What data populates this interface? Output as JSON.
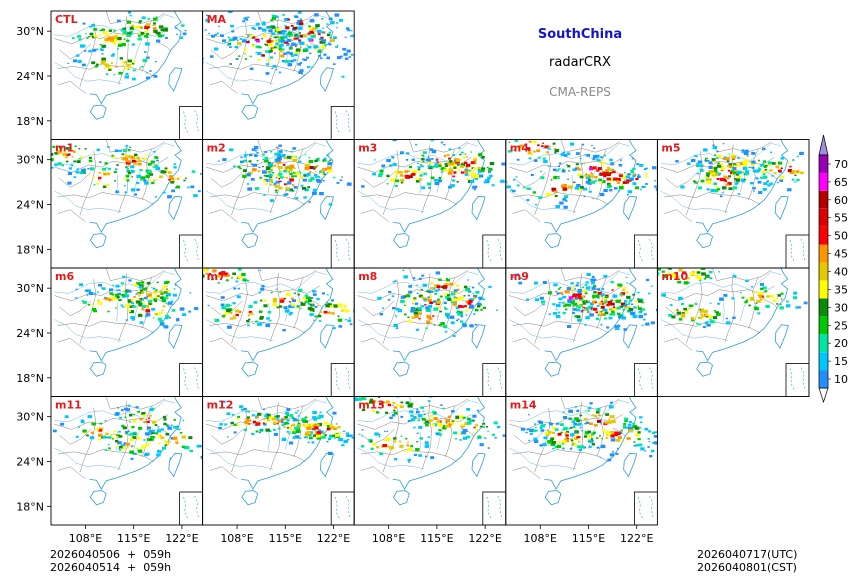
{
  "header": {
    "region": "SouthChina",
    "variable": "radarCRX",
    "model": "CMA-REPS"
  },
  "footer": {
    "init_time_utc": "2026040506  +  059h",
    "init_time_cst": "2026040514  +  059h",
    "valid_time_utc": "2026040717(UTC)",
    "valid_time_cst": "2026040801(CST)"
  },
  "chart_data": {
    "type": "heatmap",
    "title": "SouthChina radarCRX CMA-REPS",
    "lat_ticks": [
      "30°N",
      "24°N",
      "18°N"
    ],
    "lat_values": [
      30,
      24,
      18
    ],
    "lon_ticks": [
      "108°E",
      "115°E",
      "122°E"
    ],
    "lon_values": [
      108,
      115,
      122
    ],
    "lon_range": [
      103,
      125
    ],
    "lat_range": [
      15.5,
      32.7
    ],
    "members": [
      {
        "label": "CTL",
        "row": 0,
        "col": 0,
        "intensity": 0.35
      },
      {
        "label": "MA",
        "row": 0,
        "col": 1,
        "intensity": 1.0
      },
      {
        "label": "m1",
        "row": 1,
        "col": 0,
        "intensity": 0.45
      },
      {
        "label": "m2",
        "row": 1,
        "col": 1,
        "intensity": 0.6
      },
      {
        "label": "m3",
        "row": 1,
        "col": 2,
        "intensity": 0.5
      },
      {
        "label": "m4",
        "row": 1,
        "col": 3,
        "intensity": 0.75
      },
      {
        "label": "m5",
        "row": 1,
        "col": 4,
        "intensity": 0.6
      },
      {
        "label": "m6",
        "row": 2,
        "col": 0,
        "intensity": 0.4
      },
      {
        "label": "m7",
        "row": 2,
        "col": 1,
        "intensity": 0.5
      },
      {
        "label": "m8",
        "row": 2,
        "col": 2,
        "intensity": 0.55
      },
      {
        "label": "m9",
        "row": 2,
        "col": 3,
        "intensity": 0.75
      },
      {
        "label": "m10",
        "row": 2,
        "col": 4,
        "intensity": 0.35
      },
      {
        "label": "m11",
        "row": 3,
        "col": 0,
        "intensity": 0.4
      },
      {
        "label": "m12",
        "row": 3,
        "col": 1,
        "intensity": 0.55
      },
      {
        "label": "m13",
        "row": 3,
        "col": 2,
        "intensity": 0.5
      },
      {
        "label": "m14",
        "row": 3,
        "col": 3,
        "intensity": 0.6
      }
    ],
    "colorbar": {
      "levels": [
        10,
        15,
        20,
        25,
        30,
        35,
        40,
        45,
        50,
        55,
        60,
        65,
        70
      ],
      "colors": [
        "#1e90ff",
        "#00c8ff",
        "#00e6a0",
        "#00c800",
        "#0a8c0a",
        "#ffff00",
        "#e6c800",
        "#ff9600",
        "#ff0000",
        "#dc0000",
        "#b40000",
        "#ff00ff",
        "#9600b4",
        "#a08cdc"
      ],
      "extend": "both"
    },
    "colors": {
      "member_label": "#e41a1c",
      "coast": "#2a9fd6",
      "border": "#606060"
    }
  }
}
